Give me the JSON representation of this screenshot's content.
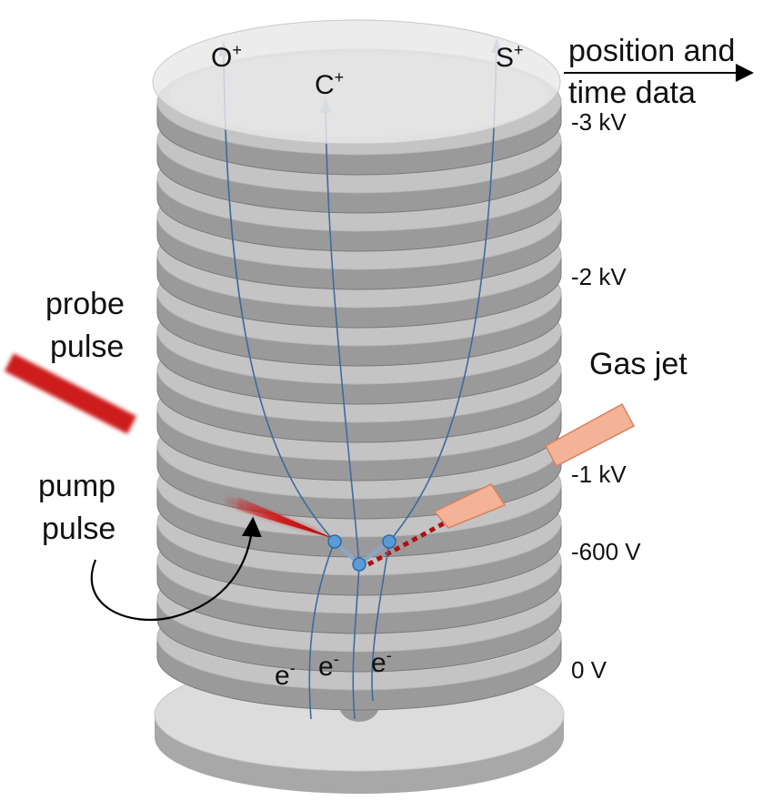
{
  "labels": {
    "ion_o": "O",
    "ion_c": "C",
    "ion_s": "S",
    "ion_charge": "+",
    "position_line1": "position and",
    "position_line2": "time data",
    "probe_line1": "probe",
    "probe_line2": "pulse",
    "pump_line1": "pump",
    "pump_line2": "pulse",
    "gas_jet": "Gas jet",
    "electron": "e",
    "electron_charge": "-"
  },
  "voltages": [
    "-3 kV",
    "-2 kV",
    "-1 kV",
    "-600 V",
    "0 V"
  ],
  "colors": {
    "plate": "#9a9a9a",
    "plate_edge": "#7a7a7a",
    "plate_inner": "#c4c4c4",
    "detector": "#dcdcdc",
    "trajectory": "#3e6aa0",
    "molecule": "#5b9bd5",
    "laser": "#cc1010",
    "gas_nozzle": "#f4b296",
    "gas_nozzle_edge": "#d8825e"
  }
}
